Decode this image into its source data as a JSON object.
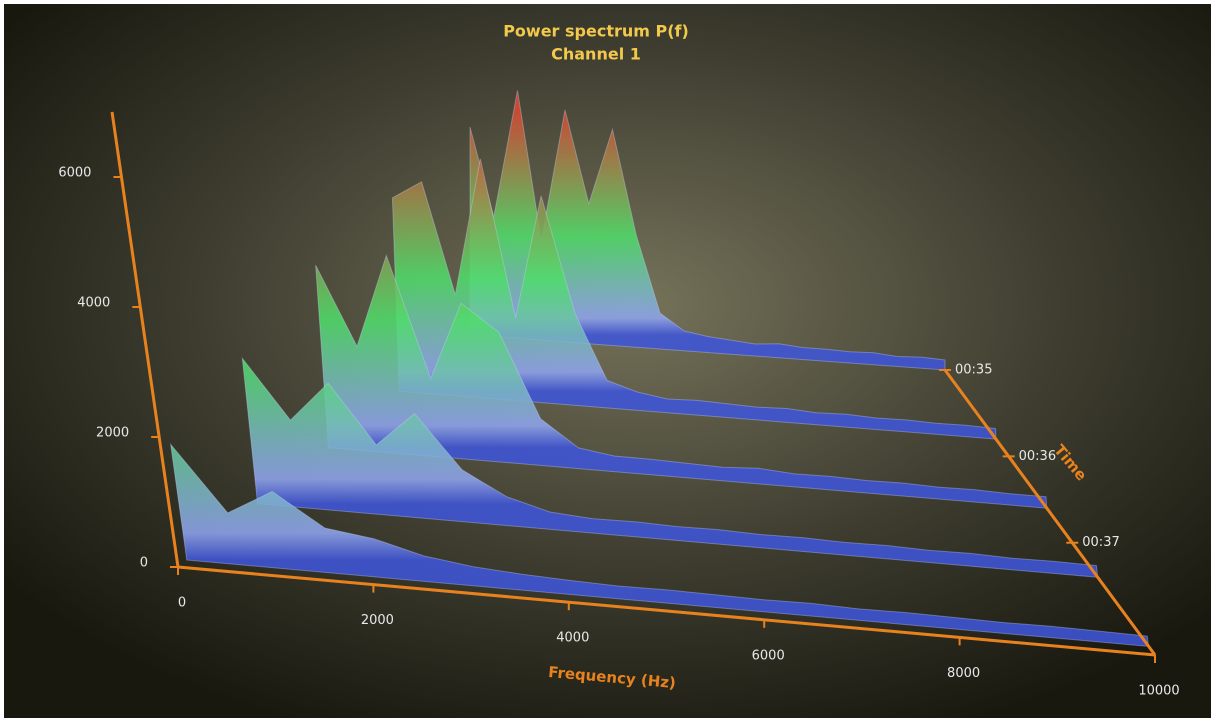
{
  "chart_data": {
    "type": "surface3d",
    "title": "Power spectrum P(f)",
    "subtitle": "Channel 1",
    "x_label": "Frequency (Hz)",
    "z_label": "Time",
    "x": [
      0,
      500,
      1000,
      1500,
      2000,
      2500,
      3000,
      3500,
      4000,
      4500,
      5000,
      5500,
      6000,
      6500,
      7000,
      7500,
      8000,
      8500,
      9000,
      9500,
      10000
    ],
    "z": [
      35,
      35.8,
      36.6,
      37.4,
      38.2
    ],
    "rows": [
      [
        5200,
        3000,
        6200,
        2500,
        5800,
        3500,
        5400,
        2800,
        900,
        500,
        400,
        350,
        300,
        350,
        300,
        300,
        280,
        300,
        250,
        280,
        250
      ],
      [
        4200,
        4600,
        2200,
        5200,
        1800,
        4500,
        2000,
        600,
        400,
        300,
        320,
        300,
        280,
        300,
        260,
        280,
        250,
        260,
        240,
        250,
        230
      ],
      [
        3500,
        2000,
        3800,
        1500,
        3000,
        2500,
        900,
        400,
        300,
        300,
        280,
        260,
        300,
        250,
        260,
        240,
        250,
        230,
        240,
        220,
        220
      ],
      [
        2500,
        1500,
        2200,
        1200,
        1800,
        900,
        500,
        300,
        250,
        260,
        240,
        250,
        230,
        240,
        220,
        230,
        210,
        220,
        200,
        210,
        200
      ],
      [
        1800,
        800,
        1200,
        700,
        600,
        400,
        300,
        250,
        220,
        200,
        210,
        200,
        190,
        200,
        180,
        190,
        180,
        170,
        180,
        170,
        160
      ]
    ],
    "colors": [
      "#3f55d8",
      "#8fa4ee",
      "#4fdc6a",
      "#d84a36"
    ],
    "axis_color": "#e8821e",
    "xlim": [
      0,
      10000
    ],
    "xticks": [
      0,
      2000,
      4000,
      6000,
      8000,
      10000
    ],
    "ylim": [
      0,
      7000
    ],
    "yticks": [
      0,
      2000,
      4000,
      6000
    ],
    "zlim": [
      35,
      38.3
    ],
    "zticks": [
      {
        "value": 35,
        "label": "00:35"
      },
      {
        "value": 36,
        "label": "00:36"
      },
      {
        "value": 37,
        "label": "00:37"
      }
    ]
  }
}
